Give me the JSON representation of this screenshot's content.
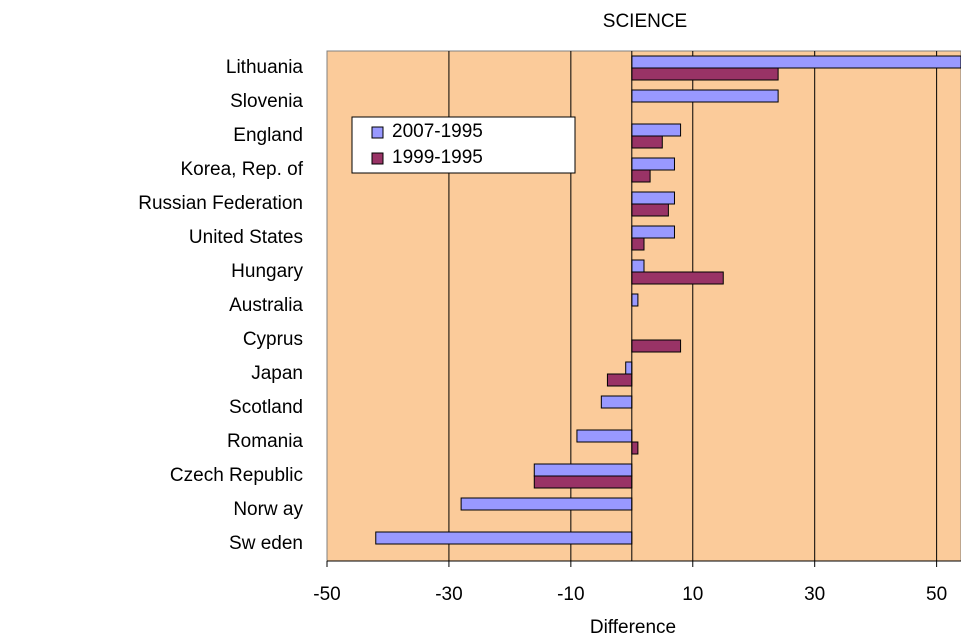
{
  "chart_data": {
    "type": "hbar",
    "title": "SCIENCE",
    "xlabel": "Difference",
    "categories": [
      "Lithuania",
      "Slovenia",
      "England",
      "Korea, Rep. of",
      "Russian Federation",
      "United States",
      "Hungary",
      "Australia",
      "Cyprus",
      "Japan",
      "Scotland",
      "Romania",
      "Czech Republic",
      "Norw ay",
      "Sw eden"
    ],
    "series": [
      {
        "name": "2007-1995",
        "color": "#9999ff",
        "values": [
          54,
          24,
          8,
          7,
          7,
          7,
          2,
          1,
          null,
          -1,
          -5,
          -9,
          -16,
          -28,
          -42
        ]
      },
      {
        "name": "1999-1995",
        "color": "#993366",
        "values": [
          24,
          null,
          5,
          3,
          6,
          2,
          15,
          null,
          8,
          -4,
          null,
          1,
          -16,
          null,
          null
        ]
      }
    ],
    "xlim": [
      -50,
      54
    ],
    "xticks": [
      -50,
      -30,
      -10,
      10,
      30,
      50
    ],
    "grid": true,
    "legend": "upper left",
    "background": "#fbcb9a"
  }
}
